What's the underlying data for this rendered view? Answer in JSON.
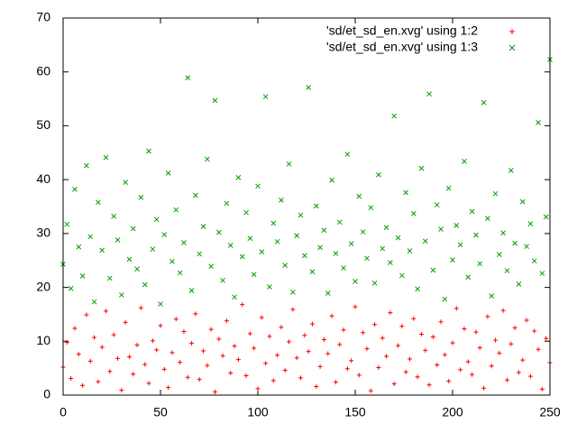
{
  "chart_data": {
    "type": "scatter",
    "xlim": [
      0,
      250
    ],
    "ylim": [
      0,
      70
    ],
    "xticks": [
      0,
      50,
      100,
      150,
      200,
      250
    ],
    "yticks": [
      0,
      10,
      20,
      30,
      40,
      50,
      60,
      70
    ],
    "legend": "top-right",
    "x": [
      0,
      2,
      4,
      6,
      8,
      10,
      12,
      14,
      16,
      18,
      20,
      22,
      24,
      26,
      28,
      30,
      32,
      34,
      36,
      38,
      40,
      42,
      44,
      46,
      48,
      50,
      52,
      54,
      56,
      58,
      60,
      62,
      64,
      66,
      68,
      70,
      72,
      74,
      76,
      78,
      80,
      82,
      84,
      86,
      88,
      90,
      92,
      94,
      96,
      98,
      100,
      102,
      104,
      106,
      108,
      110,
      112,
      114,
      116,
      118,
      120,
      122,
      124,
      126,
      128,
      130,
      132,
      134,
      136,
      138,
      140,
      142,
      144,
      146,
      148,
      150,
      152,
      154,
      156,
      158,
      160,
      162,
      164,
      166,
      168,
      170,
      172,
      174,
      176,
      178,
      180,
      182,
      184,
      186,
      188,
      190,
      192,
      194,
      196,
      198,
      200,
      202,
      204,
      206,
      208,
      210,
      212,
      214,
      216,
      218,
      220,
      222,
      224,
      226,
      228,
      230,
      232,
      234,
      236,
      238,
      240,
      242,
      244,
      246,
      248,
      250
    ],
    "series": [
      {
        "name": "'sd/et_sd_en.xvg' using 1:2",
        "color": "#ff0000",
        "marker": "plus",
        "values": [
          5.2,
          9.8,
          3.1,
          12.4,
          7.6,
          1.8,
          14.9,
          6.3,
          10.7,
          2.5,
          8.9,
          15.6,
          4.4,
          11.2,
          6.8,
          0.9,
          13.5,
          7.1,
          3.9,
          9.3,
          16.2,
          5.7,
          2.2,
          10.1,
          8.4,
          12.9,
          4.8,
          1.4,
          7.9,
          14.1,
          6.1,
          11.8,
          3.3,
          9.6,
          15.1,
          2.9,
          8.2,
          5.5,
          12.2,
          0.6,
          10.4,
          7.3,
          13.8,
          4.1,
          9.1,
          6.6,
          16.8,
          3.6,
          11.4,
          8.7,
          1.2,
          14.4,
          5.9,
          10.9,
          2.7,
          7.4,
          12.6,
          4.6,
          9.9,
          15.9,
          6.9,
          3.2,
          11.1,
          8.1,
          13.2,
          1.6,
          5.3,
          10.3,
          7.7,
          14.7,
          2.4,
          9.4,
          12.1,
          4.9,
          6.4,
          16.4,
          3.7,
          11.6,
          8.6,
          0.8,
          13.1,
          5.1,
          10.6,
          7.2,
          15.3,
          2.1,
          9.2,
          12.8,
          4.3,
          6.7,
          14.2,
          3.4,
          11.3,
          8.3,
          1.9,
          10.8,
          5.6,
          13.6,
          7.5,
          2.6,
          9.7,
          16.1,
          4.7,
          12.3,
          6.2,
          3.8,
          11.7,
          8.8,
          1.3,
          14.6,
          5.4,
          10.2,
          7.8,
          15.7,
          2.8,
          9.5,
          12.5,
          4.2,
          6.5,
          13.9,
          3.5,
          11.9,
          8.5,
          1.1,
          10.5,
          6.0
        ]
      },
      {
        "name": "'sd/et_sd_en.xvg' using 1:3",
        "color": "#00a000",
        "marker": "cross",
        "values": [
          24.3,
          31.7,
          19.8,
          38.2,
          27.5,
          22.1,
          42.6,
          29.4,
          17.3,
          35.8,
          26.9,
          44.1,
          21.7,
          33.2,
          28.8,
          18.6,
          39.5,
          25.2,
          30.9,
          23.4,
          36.7,
          20.5,
          45.3,
          27.1,
          32.6,
          16.9,
          29.8,
          41.2,
          24.8,
          34.4,
          22.7,
          28.3,
          58.9,
          19.4,
          37.1,
          26.2,
          31.3,
          43.8,
          23.9,
          54.7,
          30.2,
          21.3,
          35.6,
          27.8,
          18.2,
          40.4,
          25.7,
          33.9,
          29.1,
          22.4,
          38.8,
          26.6,
          55.4,
          20.1,
          31.9,
          28.5,
          36.2,
          24.1,
          42.9,
          19.1,
          29.6,
          33.4,
          25.9,
          57.1,
          22.9,
          35.1,
          27.4,
          30.6,
          18.9,
          39.9,
          26.3,
          32.1,
          23.6,
          44.7,
          28.1,
          21.1,
          36.9,
          30.3,
          25.4,
          34.8,
          20.8,
          40.9,
          27.2,
          31.1,
          24.6,
          51.8,
          29.2,
          22.2,
          37.6,
          26.8,
          33.7,
          19.7,
          42.1,
          28.6,
          55.9,
          23.2,
          35.3,
          30.8,
          17.8,
          38.4,
          25.1,
          31.5,
          27.9,
          43.4,
          21.9,
          34.1,
          29.7,
          24.4,
          54.3,
          32.8,
          18.4,
          37.4,
          26.1,
          30.1,
          23.1,
          41.7,
          28.2,
          20.6,
          35.9,
          27.6,
          31.8,
          24.9,
          50.6,
          22.6,
          33.1,
          62.3
        ]
      }
    ]
  }
}
